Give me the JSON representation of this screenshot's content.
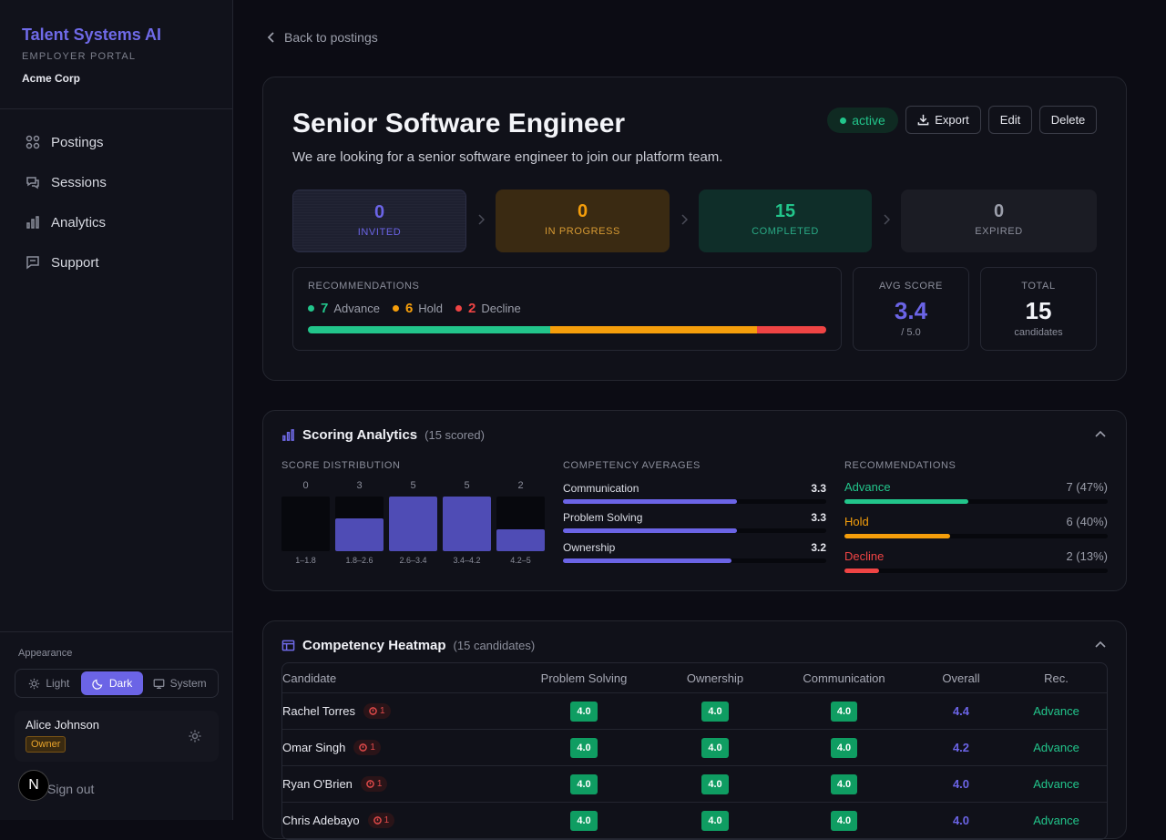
{
  "sidebar": {
    "brand": "Talent Systems AI",
    "portal": "EMPLOYER PORTAL",
    "company": "Acme Corp",
    "nav": [
      {
        "label": "Postings",
        "icon": "grid-icon"
      },
      {
        "label": "Sessions",
        "icon": "chat-bubbles-icon"
      },
      {
        "label": "Analytics",
        "icon": "bar-chart-icon"
      },
      {
        "label": "Support",
        "icon": "message-icon"
      }
    ],
    "appearance_label": "Appearance",
    "theme_options": [
      {
        "label": "Light",
        "icon": "sun-icon",
        "selected": false
      },
      {
        "label": "Dark",
        "icon": "moon-icon",
        "selected": true
      },
      {
        "label": "System",
        "icon": "monitor-icon",
        "selected": false
      }
    ],
    "user": {
      "name": "Alice Johnson",
      "role": "Owner"
    },
    "signout": "Sign out",
    "logo_letter": "N"
  },
  "header": {
    "back_label": "Back to postings"
  },
  "posting": {
    "title": "Senior Software Engineer",
    "description": "We are looking for a senior software engineer to join our platform team.",
    "status": "active",
    "actions": {
      "export": "Export",
      "edit": "Edit",
      "delete": "Delete"
    },
    "pipeline": [
      {
        "value": "0",
        "label": "INVITED",
        "color": "#6b64e6"
      },
      {
        "value": "0",
        "label": "IN PROGRESS",
        "color": "#f59e0b"
      },
      {
        "value": "15",
        "label": "COMPLETED",
        "color": "#22c58b"
      },
      {
        "value": "0",
        "label": "EXPIRED",
        "color": "#9b9eaa"
      }
    ],
    "recommendations": {
      "label": "RECOMMENDATIONS",
      "items": [
        {
          "count": "7",
          "label": "Advance",
          "color": "#22c58b",
          "share": 0.4667
        },
        {
          "count": "6",
          "label": "Hold",
          "color": "#f59e0b",
          "share": 0.4
        },
        {
          "count": "2",
          "label": "Decline",
          "color": "#ef4444",
          "share": 0.1333
        }
      ]
    },
    "avg_score": {
      "label": "AVG SCORE",
      "value": "3.4",
      "sub": "/ 5.0"
    },
    "total": {
      "label": "TOTAL",
      "value": "15",
      "sub": "candidates"
    }
  },
  "scoring": {
    "title": "Scoring Analytics",
    "count": "(15 scored)",
    "distribution": {
      "label": "SCORE DISTRIBUTION",
      "bins": [
        {
          "range": "1–1.8",
          "count": "0"
        },
        {
          "range": "1.8–2.6",
          "count": "3"
        },
        {
          "range": "2.6–3.4",
          "count": "5"
        },
        {
          "range": "3.4–4.2",
          "count": "5"
        },
        {
          "range": "4.2–5",
          "count": "2"
        }
      ]
    },
    "competency": {
      "label": "COMPETENCY AVERAGES",
      "items": [
        {
          "name": "Communication",
          "value": "3.3"
        },
        {
          "name": "Problem Solving",
          "value": "3.3"
        },
        {
          "name": "Ownership",
          "value": "3.2"
        }
      ]
    },
    "recommendations": {
      "label": "RECOMMENDATIONS",
      "items": [
        {
          "name": "Advance",
          "value": "7 (47%)",
          "color": "#22c58b",
          "share": 0.47
        },
        {
          "name": "Hold",
          "value": "6 (40%)",
          "color": "#f59e0b",
          "share": 0.4
        },
        {
          "name": "Decline",
          "value": "2 (13%)",
          "color": "#ef4444",
          "share": 0.13
        }
      ]
    }
  },
  "heatmap": {
    "title": "Competency Heatmap",
    "count": "(15 candidates)",
    "columns": [
      "Candidate",
      "Problem Solving",
      "Ownership",
      "Communication",
      "Overall",
      "Rec."
    ],
    "rows": [
      {
        "name": "Rachel Torres",
        "flags": "1",
        "ps": "4.0",
        "own": "4.0",
        "comm": "4.0",
        "overall": "4.4",
        "rec": "Advance"
      },
      {
        "name": "Omar Singh",
        "flags": "1",
        "ps": "4.0",
        "own": "4.0",
        "comm": "4.0",
        "overall": "4.2",
        "rec": "Advance"
      },
      {
        "name": "Ryan O'Brien",
        "flags": "1",
        "ps": "4.0",
        "own": "4.0",
        "comm": "4.0",
        "overall": "4.0",
        "rec": "Advance"
      },
      {
        "name": "Chris Adebayo",
        "flags": "1",
        "ps": "4.0",
        "own": "4.0",
        "comm": "4.0",
        "overall": "4.0",
        "rec": "Advance"
      }
    ]
  },
  "colors": {
    "accent": "#6b64e6",
    "success": "#22c58b",
    "warning": "#f59e0b",
    "danger": "#ef4444"
  }
}
